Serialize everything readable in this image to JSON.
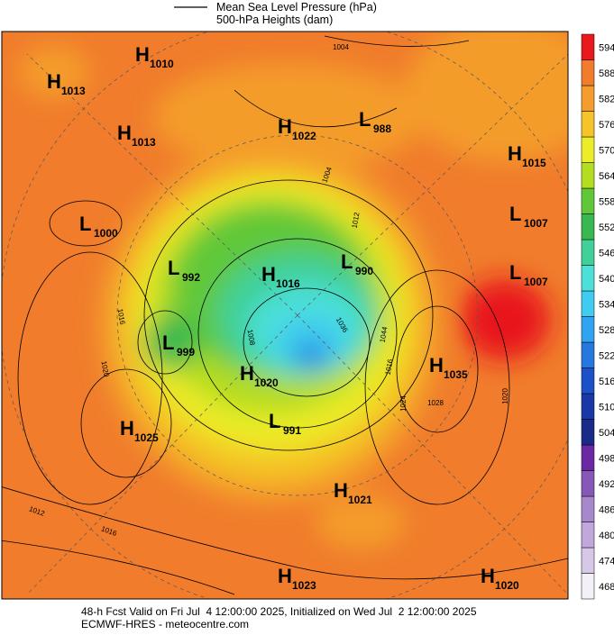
{
  "legend": {
    "items": [
      "Mean Sea Level Pressure (hPa)",
      "500-hPa Heights (dam)"
    ]
  },
  "colorbar": {
    "ticks": [
      468,
      474,
      480,
      486,
      492,
      498,
      504,
      510,
      516,
      522,
      528,
      534,
      540,
      546,
      552,
      558,
      564,
      570,
      576,
      582,
      588,
      594
    ],
    "colors": [
      "#f4f0f8",
      "#d8c8e8",
      "#c0a8dc",
      "#a888cc",
      "#8858b8",
      "#6a28a4",
      "#1a2a88",
      "#1838a8",
      "#1c50c8",
      "#2478e0",
      "#30a4f0",
      "#40ccf0",
      "#4ce0d8",
      "#40d098",
      "#38b850",
      "#60c838",
      "#b4dc20",
      "#ecec28",
      "#f4c428",
      "#f49c2c",
      "#f07c2c",
      "#e8181c"
    ]
  },
  "pressure_centers": [
    {
      "type": "H",
      "value": 1010
    },
    {
      "type": "H",
      "value": 1013
    },
    {
      "type": "H",
      "value": 1013
    },
    {
      "type": "H",
      "value": 1022
    },
    {
      "type": "L",
      "value": 988
    },
    {
      "type": "H",
      "value": 1015
    },
    {
      "type": "L",
      "value": 1000
    },
    {
      "type": "L",
      "value": 1007
    },
    {
      "type": "L",
      "value": 992
    },
    {
      "type": "H",
      "value": 1016
    },
    {
      "type": "L",
      "value": 990
    },
    {
      "type": "L",
      "value": 1007
    },
    {
      "type": "L",
      "value": 999
    },
    {
      "type": "H",
      "value": 1020
    },
    {
      "type": "H",
      "value": 1035
    },
    {
      "type": "H",
      "value": 1025
    },
    {
      "type": "L",
      "value": 991
    },
    {
      "type": "H",
      "value": 1021
    },
    {
      "type": "H",
      "value": 1023
    },
    {
      "type": "H",
      "value": 1020
    }
  ],
  "contour_labels": [
    1004,
    1004,
    1012,
    1016,
    1020,
    1008,
    1036,
    1044,
    1016,
    1024,
    1028,
    1020,
    1012,
    1016
  ],
  "footer": {
    "line1": "48-h Fcst Valid on Fri Jul  4 12:00:00 2025, Initialized on Wed Jul  2 12:00:00 2025",
    "line2": "ECMWF-HRES - meteocentre.com"
  }
}
